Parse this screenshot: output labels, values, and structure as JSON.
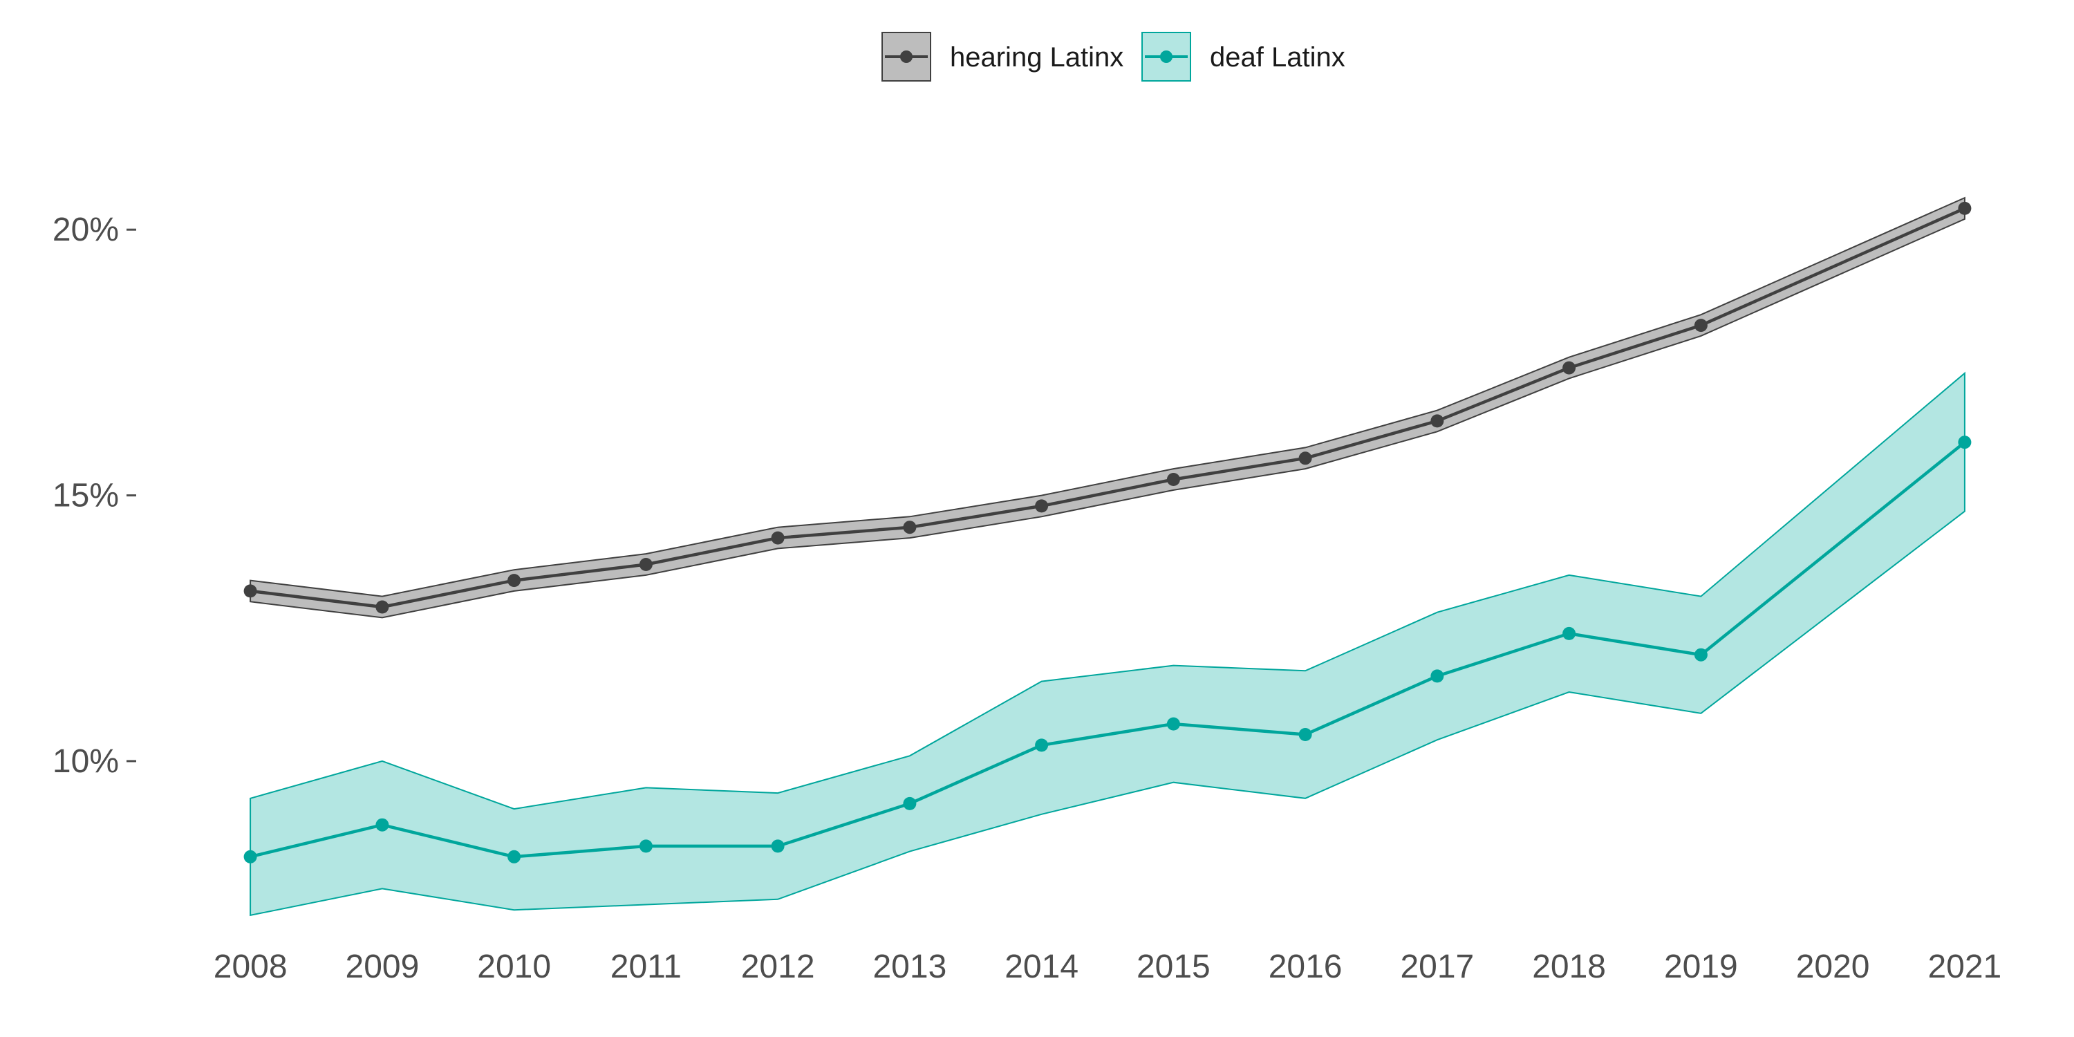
{
  "chart_data": {
    "type": "line",
    "title": "",
    "xlabel": "",
    "ylabel": "",
    "x": [
      2008,
      2009,
      2010,
      2011,
      2012,
      2013,
      2014,
      2015,
      2016,
      2017,
      2018,
      2019,
      2021
    ],
    "x_ticks": [
      "2008",
      "2009",
      "2010",
      "2011",
      "2012",
      "2013",
      "2014",
      "2015",
      "2016",
      "2017",
      "2018",
      "2019",
      "2020",
      "2021"
    ],
    "y_ticks": [
      {
        "value": 10,
        "label": "10%"
      },
      {
        "value": 15,
        "label": "15%"
      },
      {
        "value": 20,
        "label": "20%"
      }
    ],
    "ylim": [
      6.5,
      22.5
    ],
    "xlim": [
      2007.8,
      2021.2
    ],
    "grid": false,
    "legend_position": "top-center",
    "series": [
      {
        "name": "hearing Latinx",
        "color": "#404040",
        "band_fill": "#bdbdbd",
        "band_stroke": "#404040",
        "values": [
          13.2,
          12.9,
          13.4,
          13.7,
          14.2,
          14.4,
          14.8,
          15.3,
          15.7,
          16.4,
          17.4,
          18.2,
          20.4
        ],
        "lower": [
          13.0,
          12.7,
          13.2,
          13.5,
          14.0,
          14.2,
          14.6,
          15.1,
          15.5,
          16.2,
          17.2,
          18.0,
          20.2
        ],
        "upper": [
          13.4,
          13.1,
          13.6,
          13.9,
          14.4,
          14.6,
          15.0,
          15.5,
          15.9,
          16.6,
          17.6,
          18.4,
          20.6
        ]
      },
      {
        "name": "deaf Latinx",
        "color": "#00a69c",
        "band_fill": "#b3e6e2",
        "band_stroke": "#00a69c",
        "values": [
          8.2,
          8.8,
          8.2,
          8.4,
          8.4,
          9.2,
          10.3,
          10.7,
          10.5,
          11.6,
          12.4,
          12.0,
          16.0
        ],
        "lower": [
          7.1,
          7.6,
          7.2,
          7.3,
          7.4,
          8.3,
          9.0,
          9.6,
          9.3,
          10.4,
          11.3,
          10.9,
          14.7
        ],
        "upper": [
          9.3,
          10.0,
          9.1,
          9.5,
          9.4,
          10.1,
          11.5,
          11.8,
          11.7,
          12.8,
          13.5,
          13.1,
          17.3
        ]
      }
    ]
  }
}
